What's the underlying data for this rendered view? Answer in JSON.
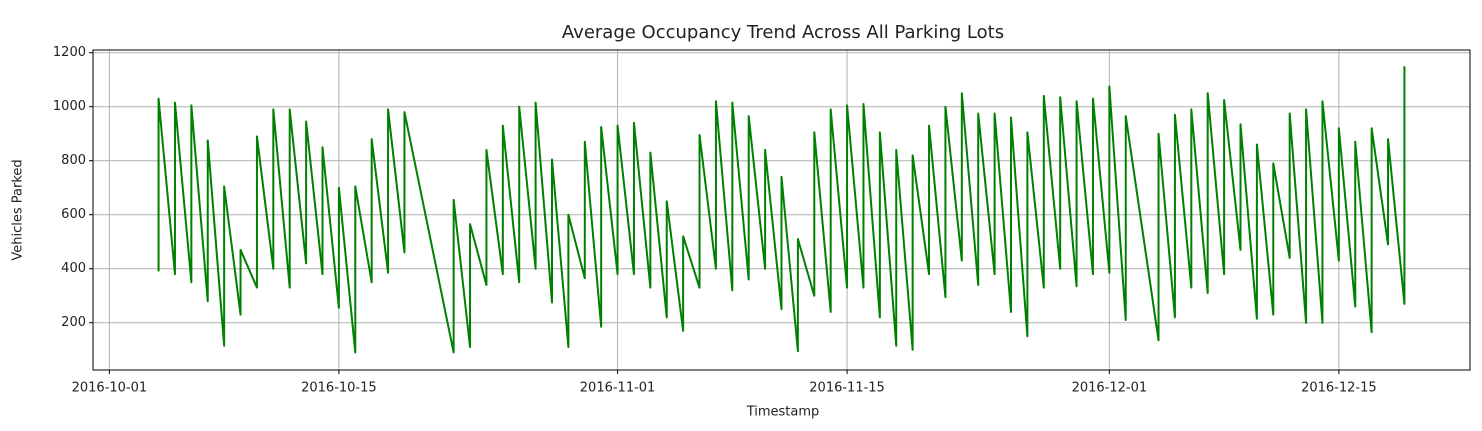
{
  "chart_data": {
    "type": "line",
    "title": "Average Occupancy Trend Across All Parking Lots",
    "xlabel": "Timestamp",
    "ylabel": "Vehicles Parked",
    "x": [
      "2016-10-04",
      "2016-10-04",
      "2016-10-05",
      "2016-10-05",
      "2016-10-06",
      "2016-10-06",
      "2016-10-07",
      "2016-10-07",
      "2016-10-08",
      "2016-10-08",
      "2016-10-09",
      "2016-10-09",
      "2016-10-10",
      "2016-10-10",
      "2016-10-11",
      "2016-10-11",
      "2016-10-12",
      "2016-10-12",
      "2016-10-13",
      "2016-10-13",
      "2016-10-14",
      "2016-10-14",
      "2016-10-15",
      "2016-10-15",
      "2016-10-16",
      "2016-10-16",
      "2016-10-17",
      "2016-10-17",
      "2016-10-18",
      "2016-10-18",
      "2016-10-19",
      "2016-10-19",
      "2016-10-22",
      "2016-10-22",
      "2016-10-23",
      "2016-10-23",
      "2016-10-24",
      "2016-10-24",
      "2016-10-25",
      "2016-10-25",
      "2016-10-26",
      "2016-10-26",
      "2016-10-27",
      "2016-10-27",
      "2016-10-28",
      "2016-10-28",
      "2016-10-29",
      "2016-10-29",
      "2016-10-30",
      "2016-10-30",
      "2016-10-31",
      "2016-10-31",
      "2016-11-01",
      "2016-11-01",
      "2016-11-02",
      "2016-11-02",
      "2016-11-03",
      "2016-11-03",
      "2016-11-04",
      "2016-11-04",
      "2016-11-05",
      "2016-11-05",
      "2016-11-06",
      "2016-11-06",
      "2016-11-07",
      "2016-11-07",
      "2016-11-08",
      "2016-11-08",
      "2016-11-09",
      "2016-11-09",
      "2016-11-10",
      "2016-11-10",
      "2016-11-11",
      "2016-11-11",
      "2016-11-12",
      "2016-11-12",
      "2016-11-13",
      "2016-11-13",
      "2016-11-14",
      "2016-11-14",
      "2016-11-15",
      "2016-11-15",
      "2016-11-16",
      "2016-11-16",
      "2016-11-17",
      "2016-11-17",
      "2016-11-18",
      "2016-11-18",
      "2016-11-19",
      "2016-11-19",
      "2016-11-20",
      "2016-11-20",
      "2016-11-21",
      "2016-11-21",
      "2016-11-22",
      "2016-11-22",
      "2016-11-23",
      "2016-11-23",
      "2016-11-24",
      "2016-11-24",
      "2016-11-25",
      "2016-11-25",
      "2016-11-26",
      "2016-11-26",
      "2016-11-27",
      "2016-11-27",
      "2016-11-28",
      "2016-11-28",
      "2016-11-29",
      "2016-11-29",
      "2016-11-30",
      "2016-11-30",
      "2016-12-01",
      "2016-12-01",
      "2016-12-02",
      "2016-12-02",
      "2016-12-04",
      "2016-12-04",
      "2016-12-05",
      "2016-12-05",
      "2016-12-06",
      "2016-12-06",
      "2016-12-07",
      "2016-12-07",
      "2016-12-08",
      "2016-12-08",
      "2016-12-09",
      "2016-12-09",
      "2016-12-10",
      "2016-12-10",
      "2016-12-11",
      "2016-12-11",
      "2016-12-12",
      "2016-12-12",
      "2016-12-13",
      "2016-12-13",
      "2016-12-14",
      "2016-12-14",
      "2016-12-15",
      "2016-12-15",
      "2016-12-16",
      "2016-12-16",
      "2016-12-17",
      "2016-12-17",
      "2016-12-18",
      "2016-12-18",
      "2016-12-19",
      "2016-12-19"
    ],
    "series": [
      {
        "name": "Average occupancy",
        "color": "#008000",
        "values": [
          390,
          1030,
          380,
          1015,
          350,
          1005,
          280,
          875,
          115,
          705,
          230,
          470,
          330,
          890,
          400,
          990,
          330,
          990,
          420,
          945,
          380,
          850,
          255,
          700,
          90,
          705,
          350,
          880,
          385,
          990,
          460,
          980,
          90,
          655,
          110,
          565,
          340,
          840,
          380,
          930,
          350,
          1000,
          400,
          1015,
          275,
          805,
          110,
          600,
          365,
          870,
          185,
          925,
          380,
          930,
          380,
          940,
          330,
          830,
          220,
          650,
          170,
          520,
          330,
          895,
          400,
          1020,
          320,
          1015,
          360,
          965,
          400,
          840,
          250,
          740,
          95,
          510,
          300,
          905,
          240,
          990,
          330,
          1005,
          330,
          1010,
          220,
          905,
          115,
          840,
          100,
          820,
          380,
          930,
          295,
          1000,
          430,
          1050,
          340,
          975,
          380,
          975,
          240,
          960,
          150,
          905,
          330,
          1040,
          400,
          1035,
          335,
          1020,
          380,
          1030,
          385,
          1075,
          210,
          965,
          135,
          900,
          220,
          970,
          330,
          990,
          310,
          1050,
          380,
          1025,
          470,
          935,
          215,
          860,
          230,
          790,
          440,
          975,
          200,
          990,
          200,
          1020,
          430,
          920,
          260,
          870,
          165,
          920,
          490,
          880,
          270,
          1150
        ]
      }
    ],
    "xlim": [
      "2016-09-30",
      "2016-12-23"
    ],
    "xticks": [
      "2016-10-01",
      "2016-10-15",
      "2016-11-01",
      "2016-11-15",
      "2016-12-01",
      "2016-12-15"
    ],
    "ylim": [
      25,
      1210
    ],
    "yticks": [
      200,
      400,
      600,
      800,
      1000,
      1200
    ],
    "grid": true
  }
}
